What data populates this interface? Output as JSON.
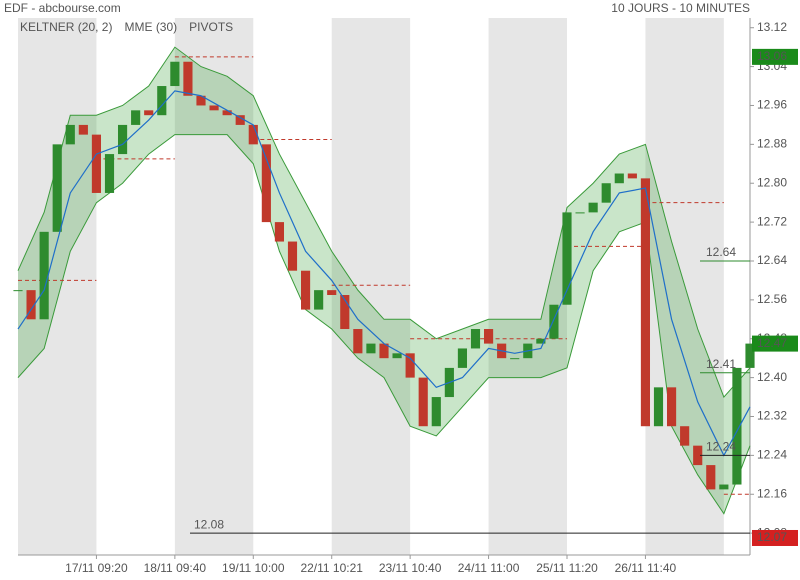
{
  "chart_data": {
    "type": "candlestick",
    "title": "EDF - abcbourse.com",
    "subtitle": "10 JOURS - 10 MINUTES",
    "legend": [
      {
        "name": "KELTNER (20, 2)",
        "color": "#3a9a3a"
      },
      {
        "name": "MME (30)",
        "color": "#1f6fc9"
      },
      {
        "name": "PIVOTS",
        "color": "#666666"
      }
    ],
    "x": [
      0,
      1,
      2,
      3,
      4,
      5,
      6,
      7,
      8,
      9,
      10,
      11,
      12,
      13,
      14,
      15,
      16,
      17,
      18,
      19,
      20,
      21,
      22,
      23,
      24,
      25,
      26,
      27,
      28,
      29,
      30,
      31,
      32,
      33,
      34,
      35,
      36,
      37,
      38,
      39,
      40,
      41,
      42,
      43,
      44,
      45,
      46,
      47,
      48,
      49,
      50,
      51,
      52,
      53,
      54,
      55,
      56
    ],
    "close": [
      12.58,
      12.52,
      12.7,
      12.88,
      12.92,
      12.9,
      12.78,
      12.86,
      12.92,
      12.95,
      12.94,
      13.0,
      13.05,
      12.98,
      12.96,
      12.95,
      12.94,
      12.92,
      12.88,
      12.72,
      12.68,
      12.62,
      12.54,
      12.58,
      12.57,
      12.5,
      12.45,
      12.47,
      12.44,
      12.45,
      12.4,
      12.3,
      12.36,
      12.42,
      12.46,
      12.5,
      12.47,
      12.44,
      12.44,
      12.47,
      12.48,
      12.55,
      12.74,
      12.74,
      12.76,
      12.8,
      12.82,
      12.81,
      12.3,
      12.38,
      12.3,
      12.26,
      12.22,
      12.17,
      12.18,
      12.42,
      12.47
    ],
    "up_color": "#2e8b2e",
    "down_color": "#c0392b",
    "indicator_x": [
      0,
      2,
      4,
      6,
      8,
      10,
      12,
      14,
      16,
      18,
      20,
      22,
      24,
      26,
      28,
      30,
      32,
      34,
      36,
      38,
      40,
      42,
      44,
      46,
      48,
      50,
      52,
      54,
      56
    ],
    "ema": [
      12.5,
      12.58,
      12.78,
      12.86,
      12.88,
      12.93,
      12.99,
      12.98,
      12.95,
      12.92,
      12.78,
      12.66,
      12.6,
      12.52,
      12.47,
      12.44,
      12.38,
      12.4,
      12.46,
      12.45,
      12.46,
      12.58,
      12.7,
      12.78,
      12.79,
      12.52,
      12.35,
      12.24,
      12.34
    ],
    "keltner_upper": [
      12.62,
      12.74,
      12.94,
      12.94,
      12.96,
      13.0,
      13.08,
      13.04,
      13.02,
      12.98,
      12.86,
      12.76,
      12.66,
      12.58,
      12.52,
      12.52,
      12.48,
      12.5,
      12.52,
      12.52,
      12.52,
      12.75,
      12.8,
      12.86,
      12.88,
      12.68,
      12.5,
      12.36,
      12.42
    ],
    "keltner_lower": [
      12.4,
      12.46,
      12.66,
      12.76,
      12.8,
      12.86,
      12.9,
      12.9,
      12.9,
      12.84,
      12.66,
      12.54,
      12.5,
      12.44,
      12.4,
      12.3,
      12.28,
      12.34,
      12.4,
      12.4,
      12.4,
      12.42,
      12.62,
      12.7,
      12.72,
      12.3,
      12.2,
      12.12,
      12.26
    ],
    "pivot_start": [
      0,
      6,
      12,
      18,
      24,
      30,
      36,
      42,
      48,
      54
    ],
    "pivot_end": [
      6,
      12,
      18,
      24,
      30,
      36,
      42,
      48,
      54,
      56
    ],
    "pivots": [
      12.6,
      12.85,
      13.06,
      12.89,
      12.59,
      12.48,
      12.48,
      12.67,
      12.76,
      12.16
    ],
    "xlim": [
      0,
      56
    ],
    "ylim": [
      12.035,
      13.14
    ],
    "day_bounds": [
      0,
      6,
      12,
      18,
      24,
      30,
      36,
      42,
      48,
      54,
      56
    ],
    "xticks": [
      {
        "value": 6,
        "label": "17/11 09:20"
      },
      {
        "value": 12,
        "label": "18/11 09:40"
      },
      {
        "value": 18,
        "label": "19/11 10:00"
      },
      {
        "value": 24,
        "label": "22/11 10:21"
      },
      {
        "value": 30,
        "label": "23/11 10:40"
      },
      {
        "value": 36,
        "label": "24/11 11:00"
      },
      {
        "value": 42,
        "label": "25/11 11:20"
      },
      {
        "value": 48,
        "label": "26/11 11:40"
      }
    ],
    "yticks": [
      13.12,
      13.04,
      12.96,
      12.88,
      {
        "value": 12.8,
        "label": "12.80"
      },
      12.72,
      12.64,
      12.56,
      12.48,
      {
        "value": 12.4,
        "label": "12.40"
      },
      12.32,
      12.24,
      12.16,
      12.08
    ],
    "levels": [
      {
        "value": 12.64,
        "color": "#2e8b2e"
      },
      {
        "value": 12.41,
        "color": "#2e8b2e"
      },
      {
        "value": 12.24,
        "color": "#222222"
      },
      {
        "value": 12.08,
        "color": "#222222"
      }
    ],
    "price_tags": [
      {
        "value": 13.06,
        "color": "#1a8a1a"
      },
      {
        "value": 12.47,
        "color": "#1a8a1a"
      },
      {
        "value": 12.07,
        "color": "#d42020"
      }
    ]
  }
}
